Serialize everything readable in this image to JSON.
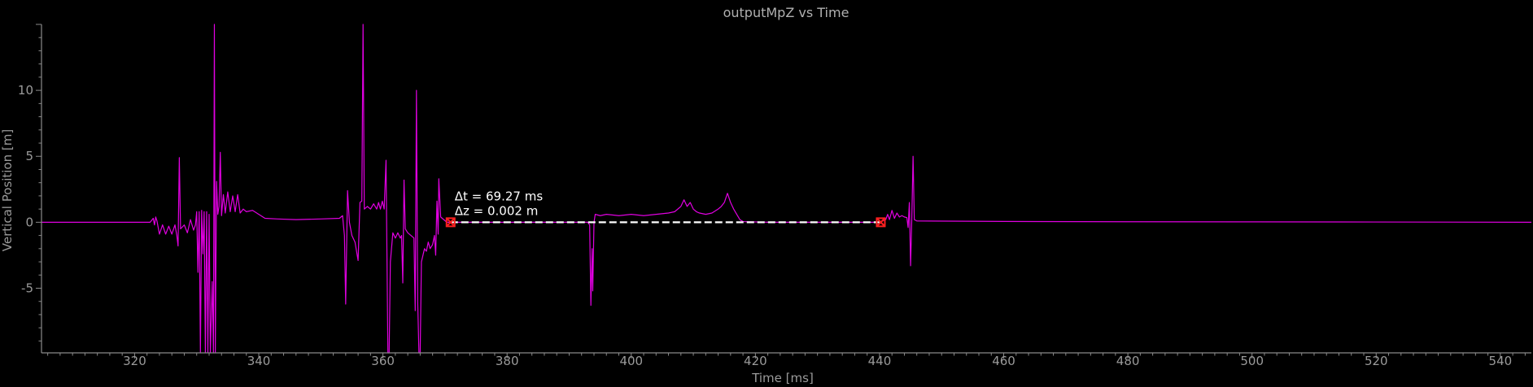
{
  "chart_data": {
    "type": "line",
    "title": "outputMpZ vs Time",
    "xlabel": "Time [ms]",
    "ylabel": "Vertical Position [m]",
    "xlim": [
      305,
      545
    ],
    "ylim": [
      -9.9,
      15
    ],
    "x_ticks": [
      320,
      340,
      360,
      380,
      400,
      420,
      440,
      460,
      480,
      500,
      520,
      540
    ],
    "y_ticks": [
      -5,
      0,
      5,
      10
    ],
    "x_tick_labels": [
      "320",
      "340",
      "360",
      "380",
      "400",
      "420",
      "440",
      "460",
      "480",
      "500",
      "520",
      "540"
    ],
    "y_tick_labels": [
      "-5",
      "0",
      "5",
      "10"
    ],
    "grid": false,
    "legend": "none",
    "colors": {
      "background": "#000000",
      "series": "#e000e0",
      "axis": "#8a8a8a",
      "marker": "#ff2020",
      "measure_line": "#ffffff"
    },
    "series": [
      {
        "color": "#e000e0",
        "points": [
          [
            305,
            0
          ],
          [
            322.5,
            0
          ],
          [
            323,
            0.3
          ],
          [
            323.2,
            -0.2
          ],
          [
            323.4,
            0.4
          ],
          [
            323.6,
            0.1
          ],
          [
            324,
            -0.9
          ],
          [
            324.5,
            -0.2
          ],
          [
            325,
            -0.9
          ],
          [
            325.5,
            -0.3
          ],
          [
            326,
            -0.9
          ],
          [
            326.5,
            -0.2
          ],
          [
            326.8,
            -1.0
          ],
          [
            327,
            -1.8
          ],
          [
            327.2,
            4.9
          ],
          [
            327.4,
            -0.5
          ],
          [
            328,
            -0.2
          ],
          [
            328.5,
            -0.8
          ],
          [
            329,
            0.2
          ],
          [
            329.5,
            -0.6
          ],
          [
            329.8,
            -0.2
          ],
          [
            330,
            0.8
          ],
          [
            330.2,
            -3.8
          ],
          [
            330.4,
            0.8
          ],
          [
            330.6,
            -9.9
          ],
          [
            330.8,
            0.9
          ],
          [
            331,
            -2.4
          ],
          [
            331.2,
            0.8
          ],
          [
            331.4,
            -9.9
          ],
          [
            331.6,
            0.8
          ],
          [
            331.8,
            -9.9
          ],
          [
            332,
            0.6
          ],
          [
            332.2,
            -9.9
          ],
          [
            332.5,
            -4.5
          ],
          [
            332.7,
            -9.9
          ],
          [
            332.85,
            15
          ],
          [
            333,
            -9.9
          ],
          [
            333.2,
            3.1
          ],
          [
            333.4,
            0.6
          ],
          [
            333.6,
            1.2
          ],
          [
            333.8,
            5.3
          ],
          [
            334,
            0.5
          ],
          [
            334.3,
            2.1
          ],
          [
            334.6,
            0.7
          ],
          [
            335,
            2.3
          ],
          [
            335.4,
            0.8
          ],
          [
            335.8,
            2.0
          ],
          [
            336.2,
            0.8
          ],
          [
            336.6,
            2.1
          ],
          [
            337,
            0.7
          ],
          [
            337.5,
            1.0
          ],
          [
            338,
            0.8
          ],
          [
            339,
            0.9
          ],
          [
            340,
            0.6
          ],
          [
            341,
            0.3
          ],
          [
            343,
            0.25
          ],
          [
            346,
            0.2
          ],
          [
            350,
            0.25
          ],
          [
            353,
            0.3
          ],
          [
            353.5,
            0.5
          ],
          [
            353.8,
            -1.0
          ],
          [
            354,
            -6.2
          ],
          [
            354.3,
            2.4
          ],
          [
            354.6,
            0.0
          ],
          [
            355,
            -1.0
          ],
          [
            355.5,
            -1.5
          ],
          [
            356,
            -2.9
          ],
          [
            356.3,
            1.5
          ],
          [
            356.6,
            1.6
          ],
          [
            356.8,
            15
          ],
          [
            357,
            1.0
          ],
          [
            357.5,
            1.2
          ],
          [
            358,
            1.0
          ],
          [
            358.5,
            1.4
          ],
          [
            359,
            1.0
          ],
          [
            359.3,
            1.5
          ],
          [
            359.6,
            1.0
          ],
          [
            359.9,
            1.6
          ],
          [
            360.2,
            1.0
          ],
          [
            360.5,
            4.7
          ],
          [
            360.8,
            -9.9
          ],
          [
            361,
            -9.9
          ],
          [
            361.2,
            -3.0
          ],
          [
            361.6,
            -0.8
          ],
          [
            362,
            -1.2
          ],
          [
            362.4,
            -0.8
          ],
          [
            362.8,
            -1.2
          ],
          [
            363,
            -1.0
          ],
          [
            363.2,
            -4.6
          ],
          [
            363.4,
            3.2
          ],
          [
            363.6,
            -0.5
          ],
          [
            364,
            -0.8
          ],
          [
            364.5,
            -1.0
          ],
          [
            365,
            -1.2
          ],
          [
            365.2,
            -6.7
          ],
          [
            365.4,
            10
          ],
          [
            365.6,
            -6.0
          ],
          [
            365.8,
            -9.9
          ],
          [
            366,
            -9.9
          ],
          [
            366.2,
            -3.0
          ],
          [
            366.4,
            -2.6
          ],
          [
            366.7,
            -2.0
          ],
          [
            367,
            -2.2
          ],
          [
            367.3,
            -1.5
          ],
          [
            367.6,
            -2.0
          ],
          [
            368,
            -1.7
          ],
          [
            368.3,
            -1.0
          ],
          [
            368.5,
            -2.5
          ],
          [
            368.7,
            1.6
          ],
          [
            368.9,
            -0.9
          ],
          [
            369,
            3.3
          ],
          [
            369.3,
            0.4
          ],
          [
            369.8,
            0.2
          ],
          [
            370.3,
            0.0
          ],
          [
            371,
            0.0
          ],
          [
            375,
            0.0
          ],
          [
            385,
            0.0
          ],
          [
            393,
            0.0
          ],
          [
            393.3,
            -0.2
          ],
          [
            393.5,
            -6.3
          ],
          [
            393.7,
            -2.0
          ],
          [
            393.8,
            -5.2
          ],
          [
            394,
            0.0
          ],
          [
            394.2,
            0.6
          ],
          [
            395,
            0.5
          ],
          [
            396,
            0.6
          ],
          [
            398,
            0.5
          ],
          [
            400,
            0.6
          ],
          [
            402,
            0.5
          ],
          [
            404,
            0.6
          ],
          [
            406,
            0.7
          ],
          [
            407,
            0.8
          ],
          [
            408,
            1.2
          ],
          [
            408.5,
            1.7
          ],
          [
            409,
            1.2
          ],
          [
            409.5,
            1.5
          ],
          [
            410,
            1.0
          ],
          [
            410.5,
            0.8
          ],
          [
            411,
            0.7
          ],
          [
            412,
            0.6
          ],
          [
            413,
            0.7
          ],
          [
            414,
            1.0
          ],
          [
            414.5,
            1.2
          ],
          [
            415,
            1.5
          ],
          [
            415.5,
            2.2
          ],
          [
            416,
            1.5
          ],
          [
            416.5,
            1.0
          ],
          [
            417,
            0.6
          ],
          [
            417.5,
            0.2
          ],
          [
            418,
            0.05
          ],
          [
            422,
            0.0
          ],
          [
            430,
            0.0
          ],
          [
            440,
            0.0
          ],
          [
            441,
            0.2
          ],
          [
            441.3,
            0.6
          ],
          [
            441.6,
            0.2
          ],
          [
            442,
            0.9
          ],
          [
            442.4,
            0.3
          ],
          [
            442.8,
            0.7
          ],
          [
            443.2,
            0.4
          ],
          [
            443.6,
            0.5
          ],
          [
            444,
            0.4
          ],
          [
            444.4,
            0.35
          ],
          [
            444.6,
            -0.4
          ],
          [
            444.8,
            1.5
          ],
          [
            445,
            -3.3
          ],
          [
            445.2,
            0.4
          ],
          [
            445.4,
            5.0
          ],
          [
            445.6,
            0.2
          ],
          [
            446,
            0.1
          ],
          [
            460,
            0.06
          ],
          [
            480,
            0.04
          ],
          [
            500,
            0.03
          ],
          [
            520,
            0.02
          ],
          [
            545,
            0.0
          ]
        ]
      }
    ],
    "annotation": {
      "dt_label": "Δt = 69.27 ms",
      "dz_label": "Δz = 0.002 m",
      "start": [
        370.9,
        0.0
      ],
      "end": [
        440.2,
        0.0
      ]
    }
  }
}
